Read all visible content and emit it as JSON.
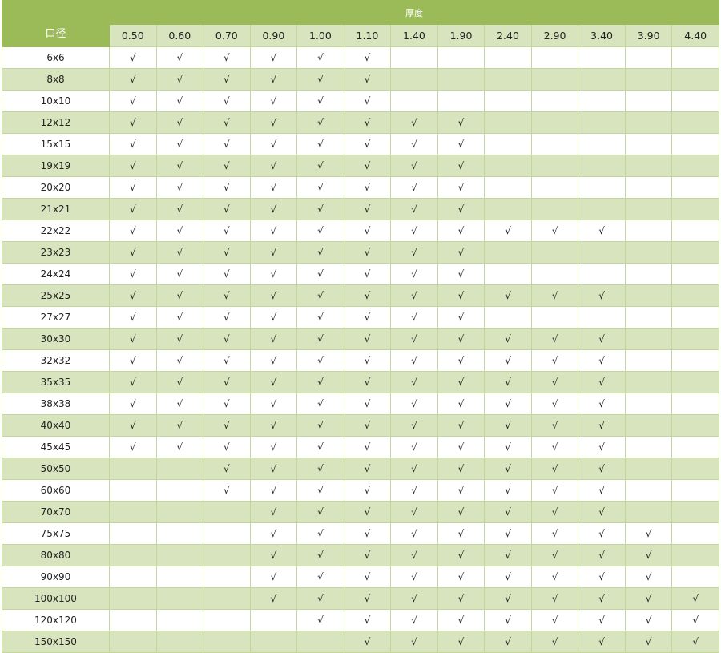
{
  "table": {
    "thickness_title": "厚度",
    "size_title": "口径",
    "thicknesses": [
      "0.50",
      "0.60",
      "0.70",
      "0.90",
      "1.00",
      "1.10",
      "1.40",
      "1.90",
      "2.40",
      "2.90",
      "3.40",
      "3.90",
      "4.40"
    ],
    "header_color": "#9bbb59",
    "alt_row_color": "#d7e4bd",
    "rows": [
      {
        "size": "6x6",
        "cells": [
          "√",
          "√",
          "√",
          "√",
          "√",
          "√",
          "",
          "",
          "",
          "",
          "",
          "",
          ""
        ]
      },
      {
        "size": "8x8",
        "cells": [
          "√",
          "√",
          "√",
          "√",
          "√",
          "√",
          "",
          "",
          "",
          "",
          "",
          "",
          ""
        ]
      },
      {
        "size": "10x10",
        "cells": [
          "√",
          "√",
          "√",
          "√",
          "√",
          "√",
          "",
          "",
          "",
          "",
          "",
          "",
          ""
        ]
      },
      {
        "size": "12x12",
        "cells": [
          "√",
          "√",
          "√",
          "√",
          "√",
          "√",
          "√",
          "√",
          "",
          "",
          "",
          "",
          ""
        ]
      },
      {
        "size": "15x15",
        "cells": [
          "√",
          "√",
          "√",
          "√",
          "√",
          "√",
          "√",
          "√",
          "",
          "",
          "",
          "",
          ""
        ]
      },
      {
        "size": "19x19",
        "cells": [
          "√",
          "√",
          "√",
          "√",
          "√",
          "√",
          "√",
          "√",
          "",
          "",
          "",
          "",
          ""
        ]
      },
      {
        "size": "20x20",
        "cells": [
          "√",
          "√",
          "√",
          "√",
          "√",
          "√",
          "√",
          "√",
          "",
          "",
          "",
          "",
          ""
        ]
      },
      {
        "size": "21x21",
        "cells": [
          "√",
          "√",
          "√",
          "√",
          "√",
          "√",
          "√",
          "√",
          "",
          "",
          "",
          "",
          ""
        ]
      },
      {
        "size": "22x22",
        "cells": [
          "√",
          "√",
          "√",
          "√",
          "√",
          "√",
          "√",
          "√",
          "√",
          "√",
          "√",
          "",
          ""
        ]
      },
      {
        "size": "23x23",
        "cells": [
          "√",
          "√",
          "√",
          "√",
          "√",
          "√",
          "√",
          "√",
          "",
          "",
          "",
          "",
          ""
        ]
      },
      {
        "size": "24x24",
        "cells": [
          "√",
          "√",
          "√",
          "√",
          "√",
          "√",
          "√",
          "√",
          "",
          "",
          "",
          "",
          ""
        ]
      },
      {
        "size": "25x25",
        "cells": [
          "√",
          "√",
          "√",
          "√",
          "√",
          "√",
          "√",
          "√",
          "√",
          "√",
          "√",
          "",
          ""
        ]
      },
      {
        "size": "27x27",
        "cells": [
          "√",
          "√",
          "√",
          "√",
          "√",
          "√",
          "√",
          "√",
          "",
          "",
          "",
          "",
          ""
        ]
      },
      {
        "size": "30x30",
        "cells": [
          "√",
          "√",
          "√",
          "√",
          "√",
          "√",
          "√",
          "√",
          "√",
          "√",
          "√",
          "",
          ""
        ]
      },
      {
        "size": "32x32",
        "cells": [
          "√",
          "√",
          "√",
          "√",
          "√",
          "√",
          "√",
          "√",
          "√",
          "√",
          "√",
          "",
          ""
        ]
      },
      {
        "size": "35x35",
        "cells": [
          "√",
          "√",
          "√",
          "√",
          "√",
          "√",
          "√",
          "√",
          "√",
          "√",
          "√",
          "",
          ""
        ]
      },
      {
        "size": "38x38",
        "cells": [
          "√",
          "√",
          "√",
          "√",
          "√",
          "√",
          "√",
          "√",
          "√",
          "√",
          "√",
          "",
          ""
        ]
      },
      {
        "size": "40x40",
        "cells": [
          "√",
          "√",
          "√",
          "√",
          "√",
          "√",
          "√",
          "√",
          "√",
          "√",
          "√",
          "",
          ""
        ]
      },
      {
        "size": "45x45",
        "cells": [
          "√",
          "√",
          "√",
          "√",
          "√",
          "√",
          "√",
          "√",
          "√",
          "√",
          "√",
          "",
          ""
        ]
      },
      {
        "size": "50x50",
        "cells": [
          "",
          "",
          "√",
          "√",
          "√",
          "√",
          "√",
          "√",
          "√",
          "√",
          "√",
          "",
          ""
        ]
      },
      {
        "size": "60x60",
        "cells": [
          "",
          "",
          "√",
          "√",
          "√",
          "√",
          "√",
          "√",
          "√",
          "√",
          "√",
          "",
          ""
        ]
      },
      {
        "size": "70x70",
        "cells": [
          "",
          "",
          "",
          "√",
          "√",
          "√",
          "√",
          "√",
          "√",
          "√",
          "√",
          "",
          ""
        ]
      },
      {
        "size": "75x75",
        "cells": [
          "",
          "",
          "",
          "√",
          "√",
          "√",
          "√",
          "√",
          "√",
          "√",
          "√",
          "√",
          ""
        ]
      },
      {
        "size": "80x80",
        "cells": [
          "",
          "",
          "",
          "√",
          "√",
          "√",
          "√",
          "√",
          "√",
          "√",
          "√",
          "√",
          ""
        ]
      },
      {
        "size": "90x90",
        "cells": [
          "",
          "",
          "",
          "√",
          "√",
          "√",
          "√",
          "√",
          "√",
          "√",
          "√",
          "√",
          ""
        ]
      },
      {
        "size": "100x100",
        "cells": [
          "",
          "",
          "",
          "√",
          "√",
          "√",
          "√",
          "√",
          "√",
          "√",
          "√",
          "√",
          "√"
        ]
      },
      {
        "size": "120x120",
        "cells": [
          "",
          "",
          "",
          "",
          "√",
          "√",
          "√",
          "√",
          "√",
          "√",
          "√",
          "√",
          "√"
        ]
      },
      {
        "size": "150x150",
        "cells": [
          "",
          "",
          "",
          "",
          "",
          "√",
          "√",
          "√",
          "√",
          "√",
          "√",
          "√",
          "√"
        ]
      }
    ]
  }
}
